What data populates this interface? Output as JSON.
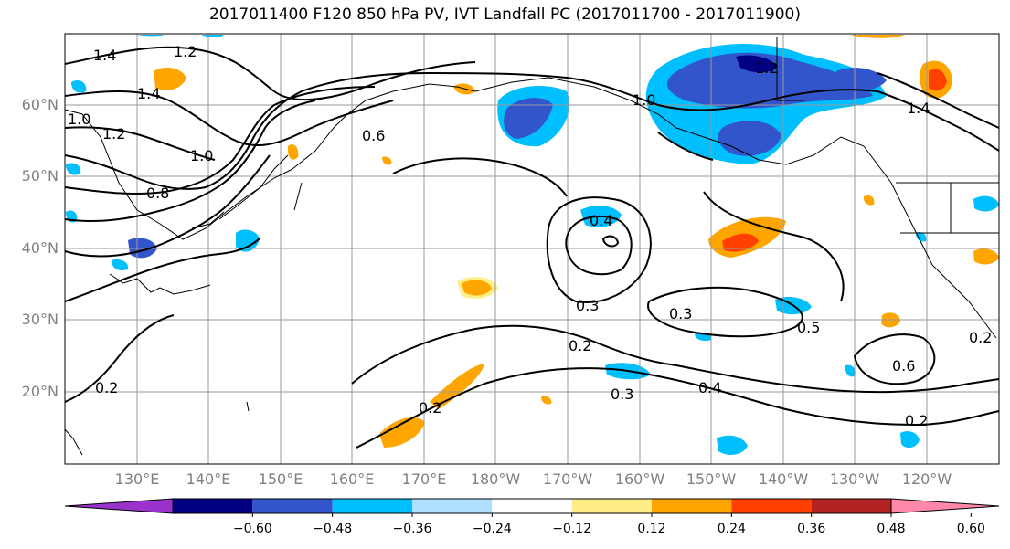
{
  "title": "2017011400 F120 850 hPa PV, IVT Landfall PC (2017011700 - 2017011900)",
  "lat_labels": [
    "60°N",
    "50°N",
    "40°N",
    "30°N",
    "20°N"
  ],
  "lon_labels": [
    "130°E",
    "140°E",
    "150°E",
    "160°E",
    "170°E",
    "180°W",
    "170°W",
    "160°W",
    "150°W",
    "140°W",
    "130°W",
    "120°W"
  ],
  "colorbar": {
    "ticks": [
      "−0.60",
      "−0.48",
      "−0.36",
      "−0.24",
      "−0.12",
      "0.12",
      "0.24",
      "0.36",
      "0.48",
      "0.60"
    ],
    "colors": [
      "#9933cc",
      "#000080",
      "#3355cc",
      "#00bfff",
      "#b0e0ff",
      "#ffffff",
      "#ffee88",
      "#ffa500",
      "#ff4000",
      "#b22222",
      "#ff88aa"
    ]
  },
  "contour_labels": [
    "1.4",
    "1.2",
    "1.4",
    "1.0",
    "1.2",
    "1.0",
    "0.8",
    "0.6",
    "0.4",
    "0.3",
    "0.2",
    "0.3",
    "0.2",
    "0.3",
    "0.4",
    "0.5",
    "0.6",
    "0.2",
    "1.0",
    "1.4",
    "1.2",
    "0.2",
    "0.2"
  ]
}
